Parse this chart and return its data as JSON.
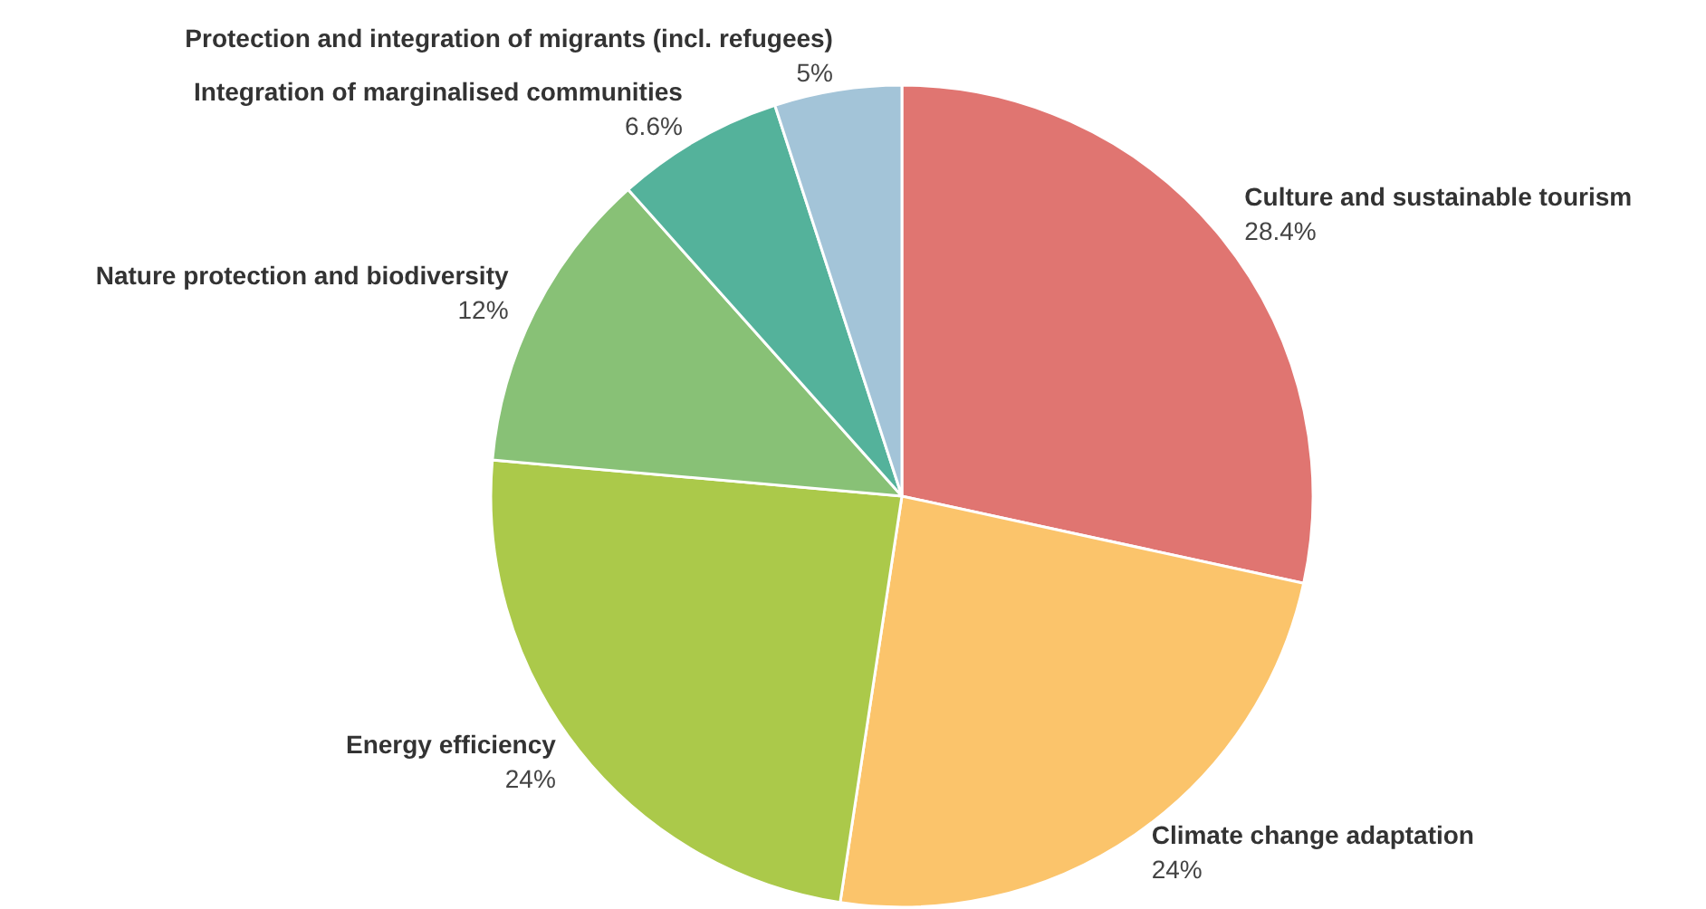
{
  "chart_data": {
    "type": "pie",
    "categories": [
      "Culture and sustainable tourism",
      "Climate change adaptation",
      "Energy efficiency",
      "Nature protection and biodiversity",
      "Integration of marginalised communities",
      "Protection and integration of migrants (incl. refugees)"
    ],
    "values": [
      28.4,
      24,
      24,
      12,
      6.6,
      5
    ],
    "value_labels": [
      "28.4%",
      "24%",
      "24%",
      "12%",
      "6.6%",
      "5%"
    ],
    "colors": [
      "#e07571",
      "#fbc46b",
      "#abc94a",
      "#88c176",
      "#54b29b",
      "#a3c4d8"
    ]
  }
}
